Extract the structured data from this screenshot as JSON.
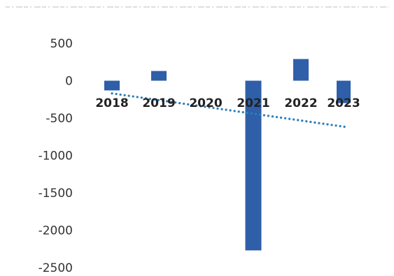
{
  "chart_data": {
    "type": "bar",
    "categories": [
      "2018",
      "2019",
      "2020",
      "2021",
      "2022",
      "2023"
    ],
    "values": [
      -130,
      130,
      0,
      -2270,
      290,
      -300
    ],
    "title": "",
    "xlabel": "",
    "ylabel": "",
    "ylim": [
      -2500,
      500
    ],
    "yticks": [
      500,
      0,
      -500,
      -1000,
      -1500,
      -2000,
      -2500
    ],
    "grid": false,
    "legend": "none",
    "bar_color": "#2e5fa8",
    "trendline": {
      "type": "linear",
      "style": "dotted",
      "color": "#2b7fb8",
      "start": {
        "category": "2018",
        "value": -170
      },
      "end": {
        "category": "2023",
        "value": -620
      }
    }
  }
}
